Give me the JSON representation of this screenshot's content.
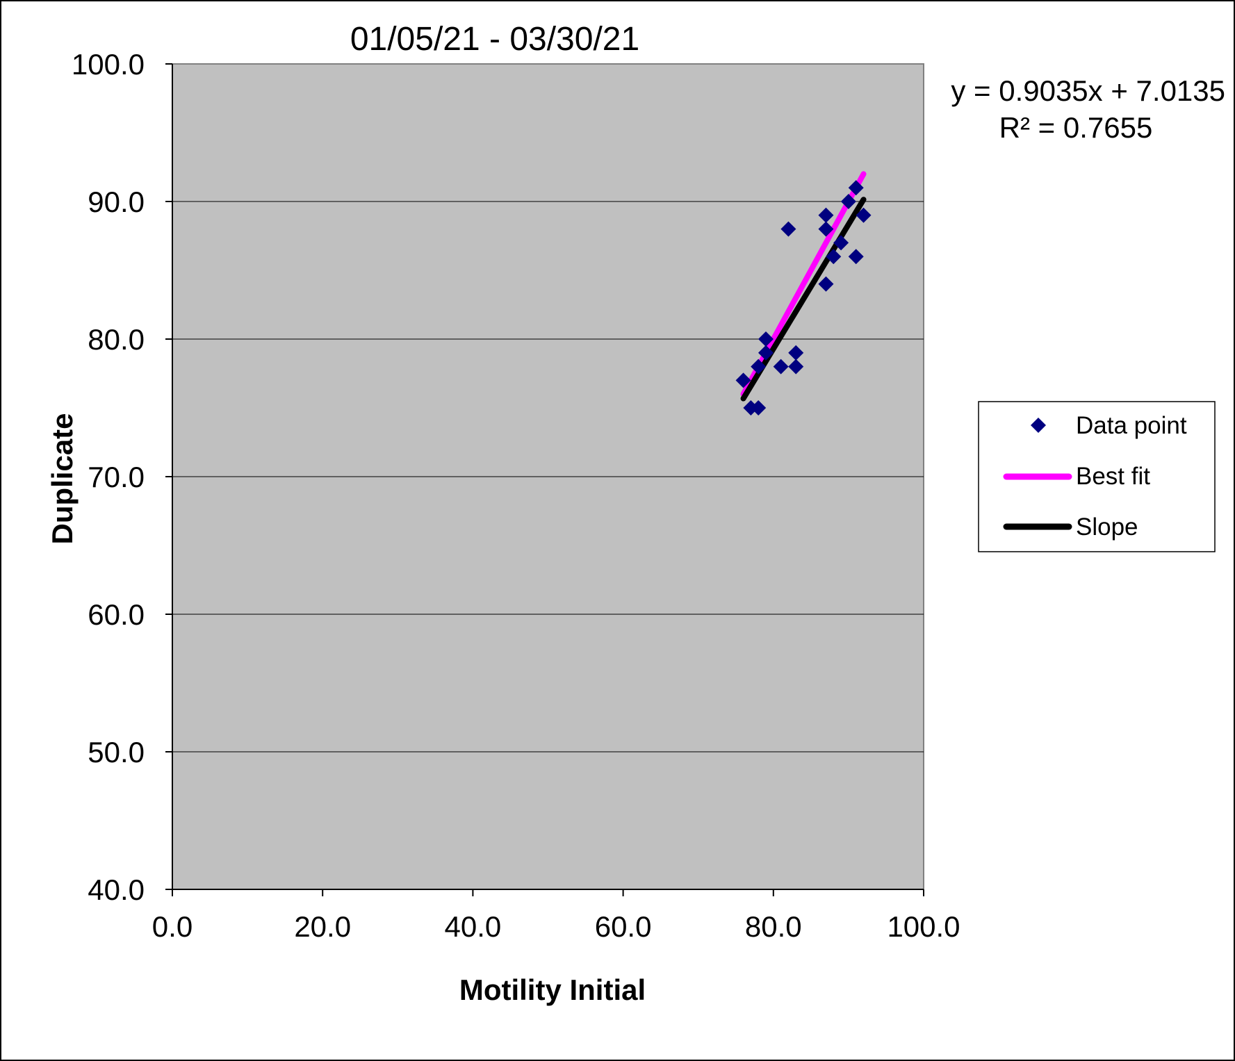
{
  "chart_data": {
    "type": "scatter",
    "title": "01/05/21 - 03/30/21",
    "xlabel": "Motility Initial",
    "ylabel": "Duplicate",
    "xlim": [
      0,
      100
    ],
    "ylim": [
      40,
      100
    ],
    "x_ticks": [
      "0.0",
      "20.0",
      "40.0",
      "60.0",
      "80.0",
      "100.0"
    ],
    "y_ticks": [
      "40.0",
      "50.0",
      "60.0",
      "70.0",
      "80.0",
      "90.0",
      "100.0"
    ],
    "x_tick_values": [
      0,
      20,
      40,
      60,
      80,
      100
    ],
    "y_tick_values": [
      40,
      50,
      60,
      70,
      80,
      90,
      100
    ],
    "grid": "horizontal",
    "legend_position": "right",
    "plot_background": "#c0c0c0",
    "equation": "y = 0.9035x + 7.0135",
    "r_squared": "R² = 0.7655",
    "series": [
      {
        "name": "Data point",
        "kind": "scatter",
        "marker": "diamond",
        "color": "#000080",
        "points": [
          [
            76,
            77
          ],
          [
            77,
            75
          ],
          [
            78,
            75
          ],
          [
            78,
            78
          ],
          [
            79,
            79
          ],
          [
            79,
            80
          ],
          [
            81,
            78
          ],
          [
            82,
            88
          ],
          [
            83,
            78
          ],
          [
            83,
            79
          ],
          [
            87,
            89
          ],
          [
            87,
            88
          ],
          [
            87,
            84
          ],
          [
            88,
            86
          ],
          [
            89,
            87
          ],
          [
            90,
            90
          ],
          [
            91,
            91
          ],
          [
            91,
            86
          ],
          [
            92,
            89
          ]
        ]
      },
      {
        "name": "Best fit",
        "kind": "line",
        "color": "#ff00ff",
        "points": [
          [
            76,
            76
          ],
          [
            92,
            92
          ]
        ]
      },
      {
        "name": "Slope",
        "kind": "line",
        "color": "#000000",
        "points": [
          [
            76,
            75.68
          ],
          [
            92,
            90.14
          ]
        ]
      }
    ]
  }
}
